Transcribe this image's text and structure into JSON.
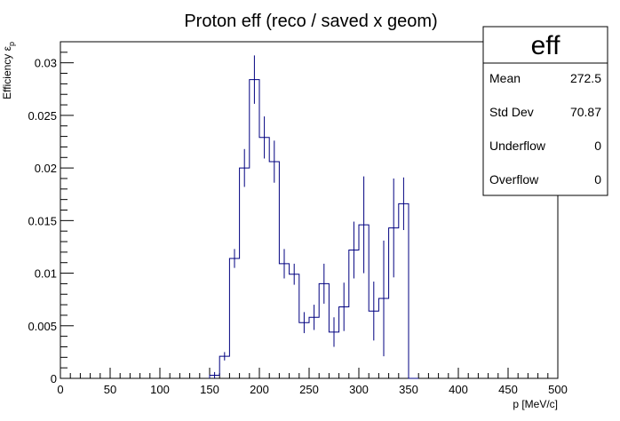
{
  "chart_data": {
    "type": "histogram",
    "title": "Proton eff (reco / saved x geom)",
    "xlabel": "p [MeV/c]",
    "ylabel": "Efficiency ε",
    "ylabel_subscript": "p",
    "xlim": [
      0,
      500
    ],
    "ylim": [
      0,
      0.032
    ],
    "x_ticks": [
      0,
      50,
      100,
      150,
      200,
      250,
      300,
      350,
      400,
      450,
      500
    ],
    "y_ticks": [
      0,
      0.005,
      0.01,
      0.015,
      0.02,
      0.025,
      0.03
    ],
    "y_tick_labels": [
      "0",
      "0.005",
      "0.01",
      "0.015",
      "0.02",
      "0.025",
      "0.03"
    ],
    "bin_width": 10,
    "bins": [
      {
        "low": 150,
        "value": 0.0003,
        "error": 0.0003
      },
      {
        "low": 160,
        "value": 0.0021,
        "error": 0.0004
      },
      {
        "low": 170,
        "value": 0.0114,
        "error": 0.0009
      },
      {
        "low": 180,
        "value": 0.02,
        "error": 0.0018
      },
      {
        "low": 190,
        "value": 0.0284,
        "error": 0.0023
      },
      {
        "low": 200,
        "value": 0.0229,
        "error": 0.002
      },
      {
        "low": 210,
        "value": 0.0206,
        "error": 0.002
      },
      {
        "low": 220,
        "value": 0.0109,
        "error": 0.0014
      },
      {
        "low": 230,
        "value": 0.0099,
        "error": 0.001
      },
      {
        "low": 240,
        "value": 0.0053,
        "error": 0.001
      },
      {
        "low": 250,
        "value": 0.0058,
        "error": 0.0012
      },
      {
        "low": 260,
        "value": 0.009,
        "error": 0.0019
      },
      {
        "low": 270,
        "value": 0.0044,
        "error": 0.0014
      },
      {
        "low": 280,
        "value": 0.0068,
        "error": 0.0023
      },
      {
        "low": 290,
        "value": 0.0122,
        "error": 0.0027
      },
      {
        "low": 300,
        "value": 0.0146,
        "error": 0.0046
      },
      {
        "low": 310,
        "value": 0.0064,
        "error": 0.0028
      },
      {
        "low": 320,
        "value": 0.0076,
        "error": 0.0055
      },
      {
        "low": 330,
        "value": 0.0143,
        "error": 0.0047
      },
      {
        "low": 340,
        "value": 0.0166,
        "error": 0.0025
      },
      {
        "low": 350,
        "value": 0.0,
        "error": 0.0
      }
    ],
    "line_color": "#000080",
    "grid": false,
    "legend": "none"
  },
  "stats_box": {
    "title": "eff",
    "rows": [
      {
        "label": "Mean",
        "value": "272.5"
      },
      {
        "label": "Std Dev",
        "value": "70.87"
      },
      {
        "label": "Underflow",
        "value": "0"
      },
      {
        "label": "Overflow",
        "value": "0"
      }
    ]
  }
}
